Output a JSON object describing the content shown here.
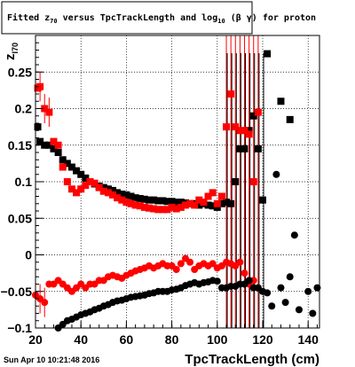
{
  "chart_data": {
    "type": "scatter",
    "title": {
      "prefix": "Fitted  z",
      "sub1": "70",
      "middle": " versus TpcTrackLength and log",
      "sub2": "10",
      "suffix": " (β γ) for proton"
    },
    "ylabel": {
      "main": "z",
      "sub": "I70"
    },
    "xlabel": "TpcTrackLength (cm)",
    "timestamp": "Sun Apr 10 10:21:48 2016",
    "xlim": [
      20,
      145
    ],
    "ylim": [
      -0.1,
      0.3
    ],
    "xticks": [
      20,
      40,
      60,
      80,
      100,
      120,
      140
    ],
    "yticks": [
      -0.1,
      -0.05,
      0,
      0.05,
      0.1,
      0.15,
      0.2,
      0.25
    ],
    "ytick_labels": [
      "−0.1",
      "−0.05",
      "0",
      "0.05",
      "0.1",
      "0.15",
      "0.2",
      "0.25"
    ],
    "grid": true,
    "series": [
      {
        "marker": "square",
        "color": "#000000",
        "points": [
          [
            21,
            0.175
          ],
          [
            22,
            0.155
          ],
          [
            24,
            0.15
          ],
          [
            26,
            0.15
          ],
          [
            28,
            0.145
          ],
          [
            30,
            0.14
          ],
          [
            32,
            0.13
          ],
          [
            34,
            0.125
          ],
          [
            36,
            0.12
          ],
          [
            38,
            0.115
          ],
          [
            40,
            0.11
          ],
          [
            42,
            0.105
          ],
          [
            44,
            0.1
          ],
          [
            46,
            0.097
          ],
          [
            48,
            0.094
          ],
          [
            50,
            0.092
          ],
          [
            52,
            0.09
          ],
          [
            54,
            0.088
          ],
          [
            56,
            0.085
          ],
          [
            58,
            0.083
          ],
          [
            60,
            0.082
          ],
          [
            62,
            0.08
          ],
          [
            64,
            0.078
          ],
          [
            66,
            0.077
          ],
          [
            68,
            0.076
          ],
          [
            70,
            0.075
          ],
          [
            72,
            0.075
          ],
          [
            74,
            0.074
          ],
          [
            76,
            0.074
          ],
          [
            78,
            0.073
          ],
          [
            80,
            0.073
          ],
          [
            82,
            0.072
          ],
          [
            84,
            0.072
          ],
          [
            86,
            0.071
          ],
          [
            88,
            0.07
          ],
          [
            90,
            0.07
          ],
          [
            92,
            0.068
          ],
          [
            94,
            0.07
          ],
          [
            96,
            0.068
          ],
          [
            98,
            0.067
          ],
          [
            100,
            0.065
          ],
          [
            102,
            0.07
          ],
          [
            104,
            0.072
          ],
          [
            106,
            0.07
          ],
          [
            108,
            0.1
          ],
          [
            110,
            0.145
          ],
          [
            112,
            0.145
          ],
          [
            114,
            0.17
          ],
          [
            116,
            0.19
          ],
          [
            118,
            0.145
          ],
          [
            120,
            0.075
          ],
          [
            122,
            0.275
          ],
          [
            128,
            0.21
          ],
          [
            132,
            0.185
          ]
        ]
      },
      {
        "marker": "square",
        "color": "#ff0000",
        "points": [
          [
            21,
            0.228
          ],
          [
            22,
            0.23
          ],
          [
            24,
            0.2
          ],
          [
            26,
            0.195
          ],
          [
            28,
            0.155
          ],
          [
            30,
            0.15
          ],
          [
            32,
            0.12
          ],
          [
            34,
            0.1
          ],
          [
            36,
            0.09
          ],
          [
            38,
            0.085
          ],
          [
            40,
            0.09
          ],
          [
            42,
            0.095
          ],
          [
            44,
            0.1
          ],
          [
            46,
            0.098
          ],
          [
            48,
            0.092
          ],
          [
            50,
            0.087
          ],
          [
            52,
            0.085
          ],
          [
            54,
            0.082
          ],
          [
            56,
            0.078
          ],
          [
            58,
            0.075
          ],
          [
            60,
            0.072
          ],
          [
            62,
            0.07
          ],
          [
            64,
            0.068
          ],
          [
            66,
            0.067
          ],
          [
            68,
            0.065
          ],
          [
            70,
            0.064
          ],
          [
            72,
            0.063
          ],
          [
            74,
            0.062
          ],
          [
            76,
            0.062
          ],
          [
            78,
            0.062
          ],
          [
            80,
            0.065
          ],
          [
            82,
            0.063
          ],
          [
            84,
            0.065
          ],
          [
            86,
            0.068
          ],
          [
            88,
            0.07
          ],
          [
            90,
            0.068
          ],
          [
            92,
            0.075
          ],
          [
            94,
            0.072
          ],
          [
            96,
            0.08
          ],
          [
            98,
            0.085
          ],
          [
            100,
            0.07
          ],
          [
            102,
            0.08
          ],
          [
            104,
            0.175
          ],
          [
            106,
            0.22
          ],
          [
            108,
            0.175
          ],
          [
            110,
            0.17
          ],
          [
            112,
            0.17
          ],
          [
            114,
            0.165
          ],
          [
            116,
            0.1
          ],
          [
            118,
            0.195
          ]
        ]
      },
      {
        "marker": "circle",
        "color": "#ff0000",
        "points": [
          [
            20,
            -0.055
          ],
          [
            22,
            -0.06
          ],
          [
            24,
            -0.065
          ],
          [
            26,
            -0.04
          ],
          [
            28,
            -0.04
          ],
          [
            30,
            -0.035
          ],
          [
            32,
            -0.04
          ],
          [
            34,
            -0.045
          ],
          [
            36,
            -0.05
          ],
          [
            38,
            -0.045
          ],
          [
            40,
            -0.04
          ],
          [
            42,
            -0.045
          ],
          [
            44,
            -0.04
          ],
          [
            46,
            -0.04
          ],
          [
            48,
            -0.035
          ],
          [
            50,
            -0.035
          ],
          [
            52,
            -0.03
          ],
          [
            54,
            -0.028
          ],
          [
            56,
            -0.03
          ],
          [
            58,
            -0.032
          ],
          [
            60,
            -0.028
          ],
          [
            62,
            -0.025
          ],
          [
            64,
            -0.022
          ],
          [
            66,
            -0.02
          ],
          [
            68,
            -0.018
          ],
          [
            70,
            -0.015
          ],
          [
            72,
            -0.018
          ],
          [
            74,
            -0.015
          ],
          [
            76,
            -0.012
          ],
          [
            78,
            -0.015
          ],
          [
            80,
            -0.015
          ],
          [
            82,
            -0.02
          ],
          [
            84,
            -0.012
          ],
          [
            86,
            -0.005
          ],
          [
            88,
            -0.01
          ],
          [
            90,
            -0.02
          ],
          [
            92,
            -0.015
          ],
          [
            94,
            -0.012
          ],
          [
            96,
            -0.015
          ],
          [
            98,
            -0.012
          ],
          [
            100,
            -0.018
          ],
          [
            102,
            -0.015
          ],
          [
            104,
            -0.01
          ],
          [
            106,
            -0.012
          ],
          [
            108,
            -0.015
          ],
          [
            110,
            -0.01
          ],
          [
            112,
            -0.025
          ],
          [
            114,
            -0.04
          ],
          [
            116,
            -0.035
          ],
          [
            118,
            -0.045
          ]
        ]
      },
      {
        "marker": "circle",
        "color": "#000000",
        "points": [
          [
            30,
            -0.1
          ],
          [
            32,
            -0.095
          ],
          [
            34,
            -0.09
          ],
          [
            36,
            -0.088
          ],
          [
            38,
            -0.085
          ],
          [
            40,
            -0.082
          ],
          [
            42,
            -0.08
          ],
          [
            44,
            -0.078
          ],
          [
            46,
            -0.075
          ],
          [
            48,
            -0.073
          ],
          [
            50,
            -0.07
          ],
          [
            52,
            -0.068
          ],
          [
            54,
            -0.065
          ],
          [
            56,
            -0.063
          ],
          [
            58,
            -0.062
          ],
          [
            60,
            -0.06
          ],
          [
            62,
            -0.058
          ],
          [
            64,
            -0.057
          ],
          [
            66,
            -0.056
          ],
          [
            68,
            -0.055
          ],
          [
            70,
            -0.053
          ],
          [
            72,
            -0.052
          ],
          [
            74,
            -0.05
          ],
          [
            76,
            -0.05
          ],
          [
            78,
            -0.05
          ],
          [
            80,
            -0.048
          ],
          [
            82,
            -0.047
          ],
          [
            84,
            -0.045
          ],
          [
            86,
            -0.042
          ],
          [
            88,
            -0.04
          ],
          [
            90,
            -0.038
          ],
          [
            92,
            -0.04
          ],
          [
            94,
            -0.038
          ],
          [
            96,
            -0.037
          ],
          [
            98,
            -0.035
          ],
          [
            100,
            -0.036
          ],
          [
            102,
            -0.045
          ],
          [
            104,
            -0.045
          ],
          [
            106,
            -0.043
          ],
          [
            108,
            -0.043
          ],
          [
            110,
            -0.04
          ],
          [
            112,
            -0.04
          ],
          [
            114,
            -0.035
          ],
          [
            116,
            -0.045
          ],
          [
            118,
            -0.045
          ],
          [
            120,
            -0.05
          ],
          [
            122,
            -0.052
          ],
          [
            124,
            -0.07
          ],
          [
            126,
            0.11
          ],
          [
            128,
            -0.045
          ],
          [
            130,
            -0.065
          ],
          [
            132,
            -0.03
          ],
          [
            134,
            0.027
          ],
          [
            136,
            -0.075
          ],
          [
            140,
            -0.05
          ],
          [
            142,
            -0.08
          ],
          [
            144,
            -0.045
          ]
        ]
      }
    ]
  }
}
